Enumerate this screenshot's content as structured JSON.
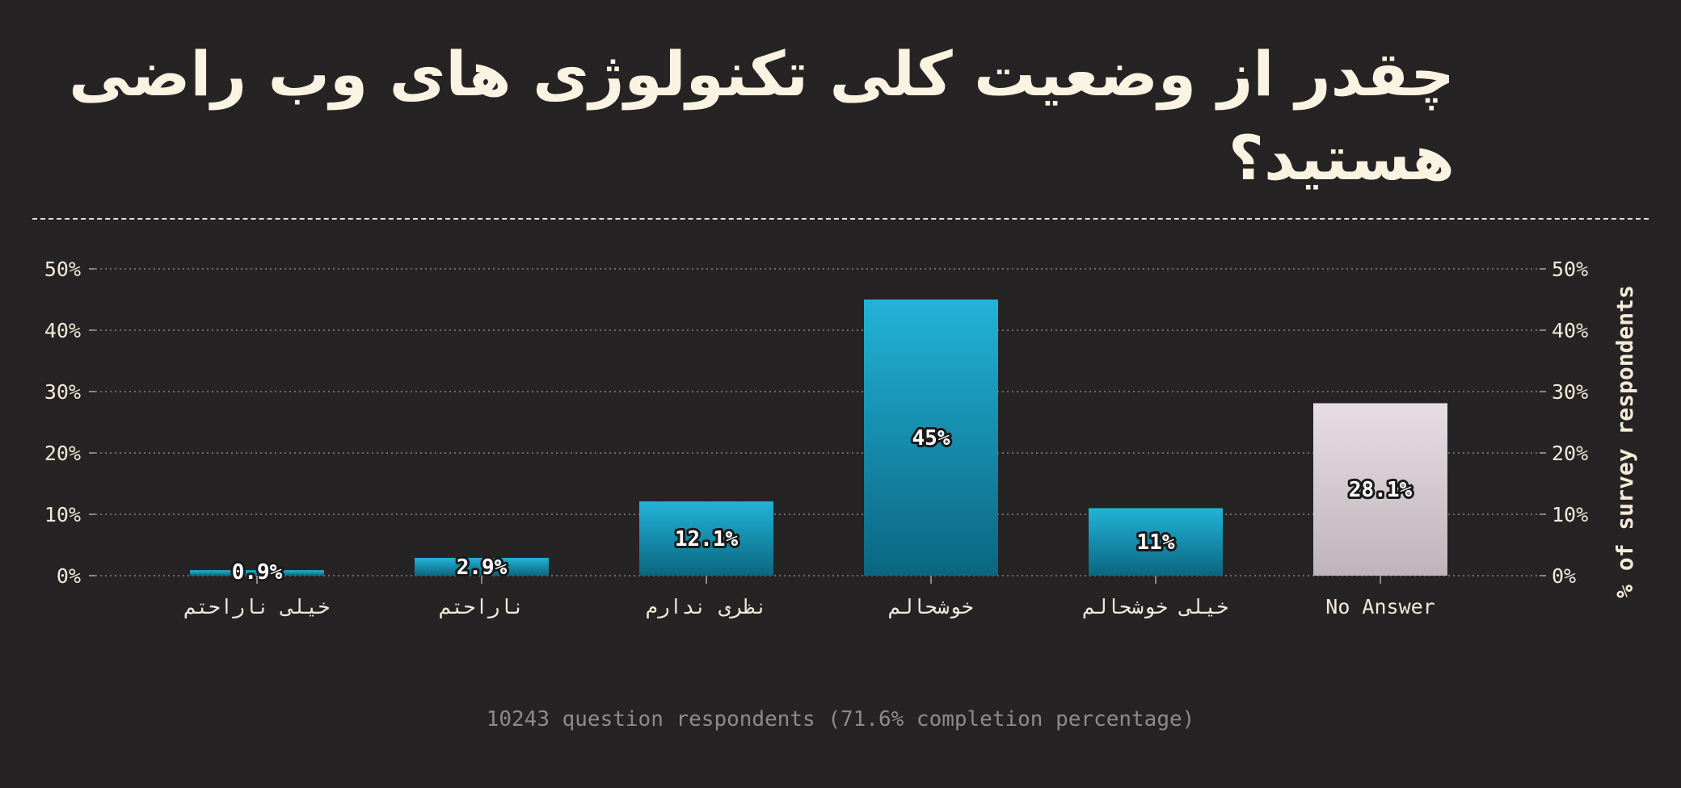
{
  "chart_data": {
    "type": "bar",
    "title": "چقدر از وضعیت کلی تکنولوژی های وب راضی هستید؟",
    "categories": [
      "خیلی ناراحتم",
      "ناراحتم",
      "نظری ندارم",
      "خوشحالم",
      "خیلی خوشحالم",
      "No Answer"
    ],
    "values": [
      0.9,
      2.9,
      12.1,
      45,
      11,
      28.1
    ],
    "value_labels": [
      "0.9%",
      "2.9%",
      "12.1%",
      "45%",
      "11%",
      "28.1%"
    ],
    "ylabel": "% of survey respondents",
    "ylim": [
      0,
      50
    ],
    "yticks": [
      "0%",
      "10%",
      "20%",
      "30%",
      "40%",
      "50%"
    ],
    "grid": true,
    "colors": {
      "bar_top": "#22b3d8",
      "bar_bottom": "#0b6680",
      "no_answer_top": "#e8dde2",
      "no_answer_bottom": "#bfb4b9"
    }
  },
  "footer": "10243 question respondents (71.6% completion percentage)"
}
